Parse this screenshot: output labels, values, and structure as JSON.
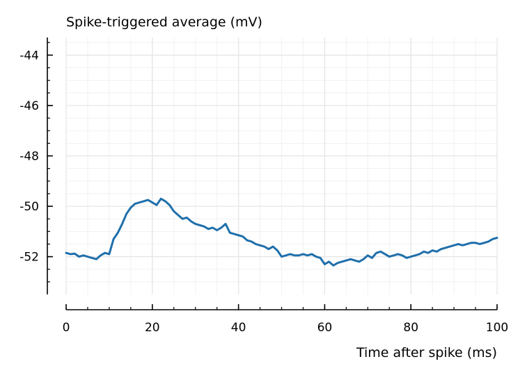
{
  "chart_data": {
    "type": "line",
    "title": "Spike-triggered average (mV)",
    "xlabel": "Time after spike (ms)",
    "ylabel": "",
    "xlim": [
      0,
      100
    ],
    "ylim": [
      -53.5,
      -43.3
    ],
    "xticks": [
      0,
      20,
      40,
      60,
      80,
      100
    ],
    "xtick_labels": [
      "0",
      "20",
      "40",
      "60",
      "80",
      "100"
    ],
    "yticks": [
      -44,
      -46,
      -48,
      -50,
      -52
    ],
    "ytick_labels": [
      "-44",
      "-46",
      "-48",
      "-50",
      "-52"
    ],
    "grid": true,
    "legend": "none",
    "series_color": "#1f6fab",
    "series": [
      {
        "x": [
          0,
          1,
          2,
          3,
          4,
          5,
          6,
          7,
          8,
          9,
          10,
          11,
          12,
          13,
          14,
          15,
          16,
          17,
          18,
          19,
          20,
          21,
          22,
          23,
          24,
          25,
          26,
          27,
          28,
          29,
          30,
          31,
          32,
          33,
          34,
          35,
          36,
          37,
          38,
          39,
          40,
          41,
          42,
          43,
          44,
          45,
          46,
          47,
          48,
          49,
          50,
          51,
          52,
          53,
          54,
          55,
          56,
          57,
          58,
          59,
          60,
          61,
          62,
          63,
          64,
          65,
          66,
          67,
          68,
          69,
          70,
          71,
          72,
          73,
          74,
          75,
          76,
          77,
          78,
          79,
          80,
          81,
          82,
          83,
          84,
          85,
          86,
          87,
          88,
          89,
          90,
          91,
          92,
          93,
          94,
          95,
          96,
          97,
          98,
          99,
          100
        ],
        "values": [
          -51.85,
          -51.9,
          -51.88,
          -52.0,
          -51.95,
          -52.0,
          -52.05,
          -52.1,
          -51.95,
          -51.85,
          -51.9,
          -51.3,
          -51.05,
          -50.7,
          -50.3,
          -50.05,
          -49.9,
          -49.85,
          -49.8,
          -49.75,
          -49.85,
          -49.95,
          -49.7,
          -49.8,
          -49.95,
          -50.2,
          -50.35,
          -50.5,
          -50.45,
          -50.6,
          -50.7,
          -50.75,
          -50.8,
          -50.9,
          -50.85,
          -50.95,
          -50.85,
          -50.7,
          -51.05,
          -51.1,
          -51.15,
          -51.2,
          -51.35,
          -51.4,
          -51.5,
          -51.55,
          -51.6,
          -51.7,
          -51.6,
          -51.75,
          -52.0,
          -51.95,
          -51.9,
          -51.95,
          -51.95,
          -51.9,
          -51.95,
          -51.9,
          -52.0,
          -52.05,
          -52.3,
          -52.2,
          -52.35,
          -52.25,
          -52.2,
          -52.15,
          -52.1,
          -52.15,
          -52.2,
          -52.1,
          -51.95,
          -52.05,
          -51.85,
          -51.8,
          -51.9,
          -52.0,
          -51.95,
          -51.9,
          -51.95,
          -52.05,
          -52.0,
          -51.95,
          -51.9,
          -51.8,
          -51.85,
          -51.75,
          -51.8,
          -51.7,
          -51.65,
          -51.6,
          -51.55,
          -51.5,
          -51.55,
          -51.5,
          -51.45,
          -51.45,
          -51.5,
          -51.45,
          -51.4,
          -51.3,
          -51.25
        ]
      }
    ]
  }
}
